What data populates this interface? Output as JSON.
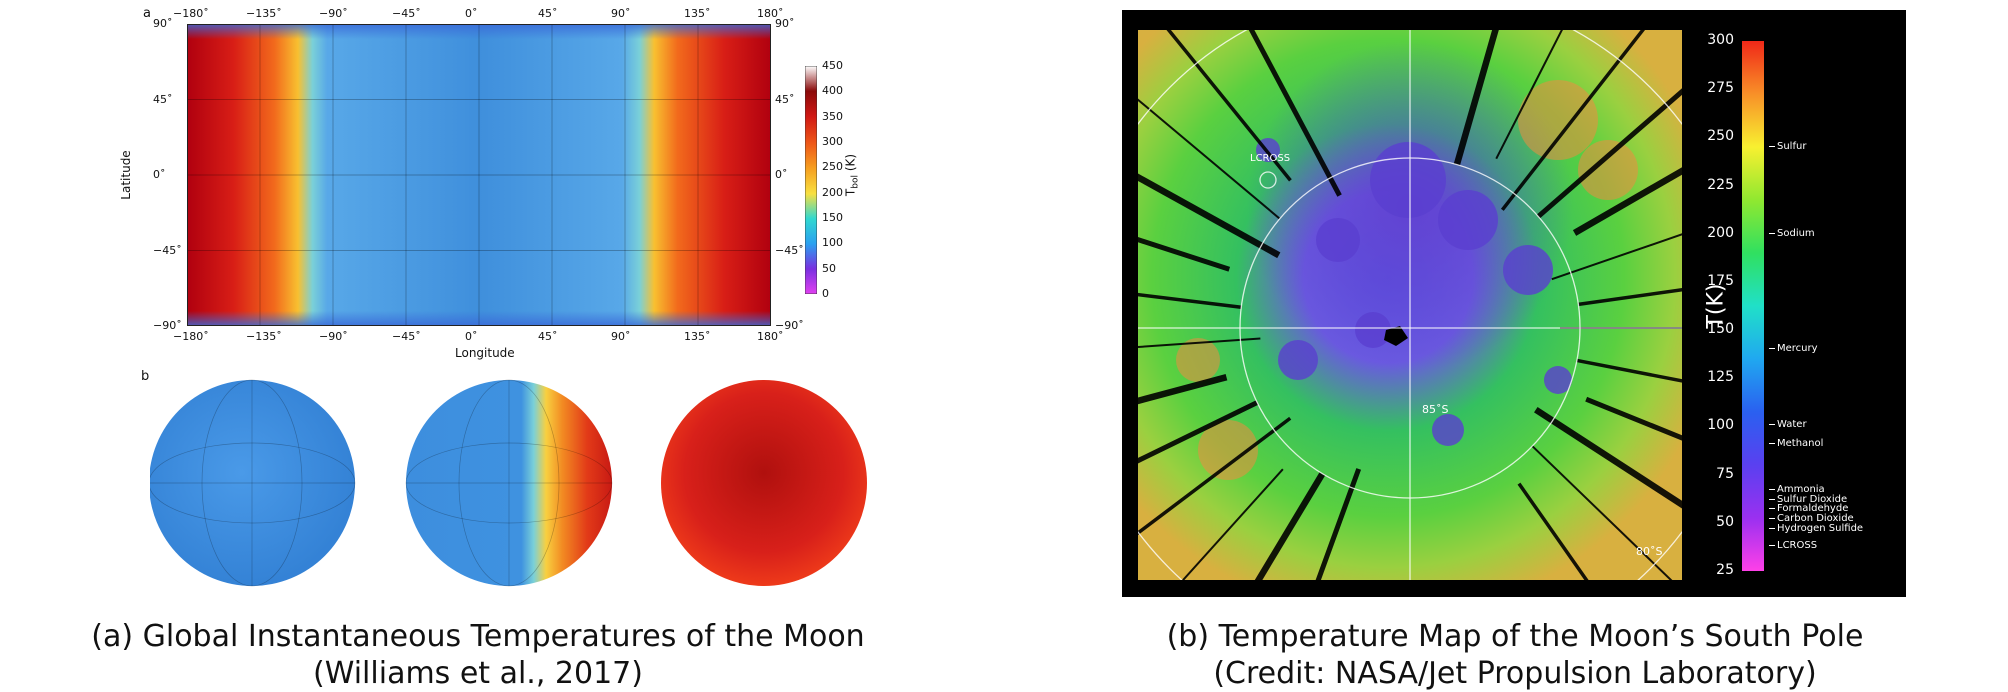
{
  "panel_a": {
    "letter_a": "a",
    "letter_b": "b",
    "lon_ticks": [
      "−180˚",
      "−135˚",
      "−90˚",
      "−45˚",
      "0˚",
      "45˚",
      "90˚",
      "135˚",
      "180˚"
    ],
    "lat_ticks": [
      "90˚",
      "45˚",
      "0˚",
      "−45˚",
      "−90˚"
    ],
    "xlabel": "Longitude",
    "ylabel": "Latitude",
    "colorbar_ticks": [
      "450",
      "400",
      "350",
      "300",
      "250",
      "200",
      "150",
      "100",
      "50",
      "0"
    ],
    "colorbar_label": "T",
    "colorbar_label_sub": "bol",
    "colorbar_unit": "(K)",
    "caption_line1": "(a) Global Instantaneous Temperatures of the Moon",
    "caption_line2": "(Williams et al., 2017)"
  },
  "panel_b": {
    "labels": {
      "lcross_site": "LCROSS",
      "lat_85": "85˚S",
      "lat_80": "80˚S"
    },
    "colorbar_ticks": [
      "300",
      "275",
      "250",
      "225",
      "200",
      "175",
      "150",
      "125",
      "100",
      "75",
      "50",
      "25"
    ],
    "colorbar_label": "T(K)",
    "substances": [
      {
        "name": "Sulfur",
        "t": 245
      },
      {
        "name": "Sodium",
        "t": 200
      },
      {
        "name": "Mercury",
        "t": 140
      },
      {
        "name": "Water",
        "t": 101
      },
      {
        "name": "Methanol",
        "t": 91
      },
      {
        "name": "Ammonia",
        "t": 67
      },
      {
        "name": "Sulfur Dioxide",
        "t": 62
      },
      {
        "name": "Formaldehyde",
        "t": 57
      },
      {
        "name": "Carbon Dioxide",
        "t": 52
      },
      {
        "name": "Hydrogen Sulfide",
        "t": 47
      },
      {
        "name": "LCROSS",
        "t": 38
      }
    ],
    "caption_line1": "(b) Temperature Map of the Moon’s South Pole",
    "caption_line2": "(Credit: NASA/Jet Propulsion Laboratory)"
  },
  "colors": {
    "hot": "#c8101a",
    "warm": "#f07820",
    "cold": "#3a8fdc",
    "background_b": "#000000"
  }
}
